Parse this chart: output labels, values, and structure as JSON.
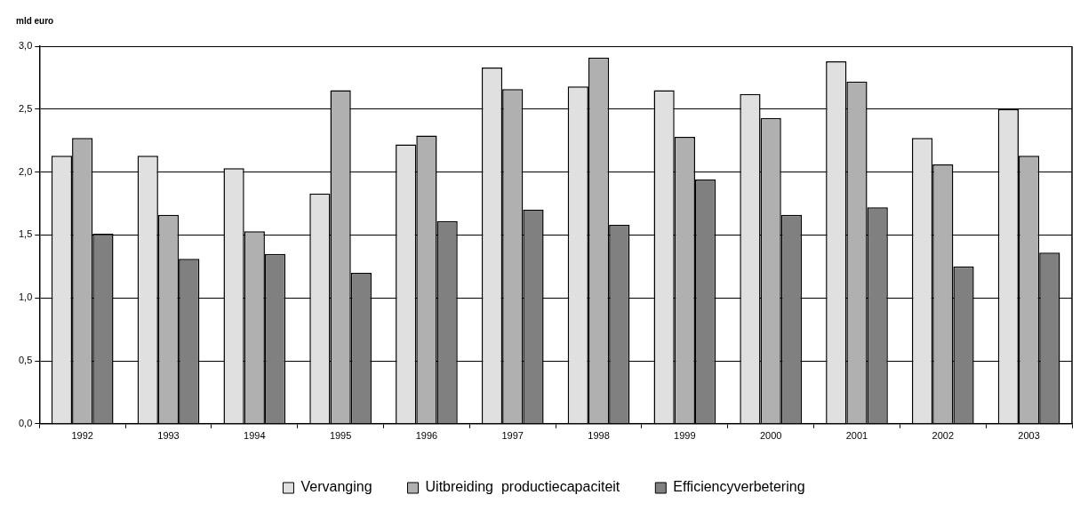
{
  "chart_data": {
    "type": "bar",
    "ylabel": "mld euro",
    "categories": [
      "1992",
      "1993",
      "1994",
      "1995",
      "1996",
      "1997",
      "1998",
      "1999",
      "2000",
      "2001",
      "2002",
      "2003"
    ],
    "series": [
      {
        "name": "Vervanging",
        "color": "#e0e0e0",
        "values": [
          2.13,
          2.13,
          2.03,
          1.83,
          2.22,
          2.83,
          2.68,
          2.65,
          2.62,
          2.88,
          2.27,
          2.5
        ]
      },
      {
        "name": "Uitbreiding  productiecapaciteit",
        "color": "#b0b0b0",
        "values": [
          2.27,
          1.66,
          1.53,
          2.65,
          2.29,
          2.66,
          2.91,
          2.28,
          2.43,
          2.72,
          2.06,
          2.13
        ]
      },
      {
        "name": "Efficiencyverbetering",
        "color": "#808080",
        "values": [
          1.51,
          1.31,
          1.35,
          1.2,
          1.61,
          1.7,
          1.58,
          1.94,
          1.66,
          1.72,
          1.25,
          1.36
        ]
      }
    ],
    "ylim": [
      0,
      3
    ],
    "yticks": [
      {
        "value": 0,
        "label": "0,0"
      },
      {
        "value": 0.5,
        "label": "0,5"
      },
      {
        "value": 1,
        "label": "1,0"
      },
      {
        "value": 1.5,
        "label": "1,5"
      },
      {
        "value": 2,
        "label": "2,0"
      },
      {
        "value": 2.5,
        "label": "2,5"
      },
      {
        "value": 3,
        "label": "3,0"
      }
    ],
    "grid": "y",
    "legend": "bottom"
  }
}
